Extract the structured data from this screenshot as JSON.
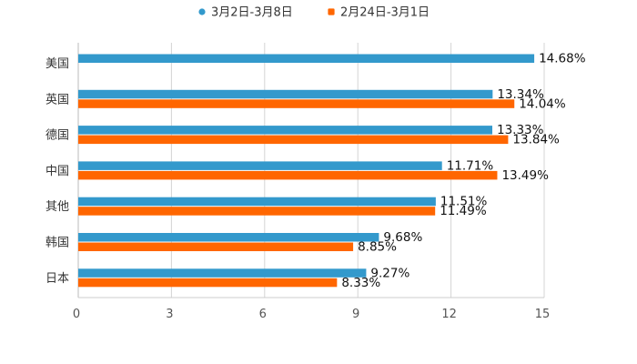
{
  "chart_data": {
    "type": "bar",
    "orientation": "horizontal",
    "categories": [
      "美国",
      "英国",
      "德国",
      "中国",
      "其他",
      "韩国",
      "日本"
    ],
    "series": [
      {
        "name": "3月2日-3月8日",
        "color": "#3399cc",
        "values": [
          14.68,
          13.34,
          13.33,
          11.71,
          11.51,
          9.68,
          9.27
        ],
        "labels": [
          "14.68%",
          "13.34%",
          "13.33%",
          "11.71%",
          "11.51%",
          "9.68%",
          "9.27%"
        ]
      },
      {
        "name": "2月24日-3月1日",
        "color": "#ff6600",
        "values": [
          null,
          14.04,
          13.84,
          13.49,
          11.49,
          8.85,
          8.33
        ],
        "labels": [
          null,
          "14.04%",
          "13.84%",
          "13.49%",
          "11.49%",
          "8.85%",
          "8.33%"
        ]
      }
    ],
    "xlim": [
      0,
      15
    ],
    "x_ticks": [
      0,
      3,
      6,
      9,
      12,
      15
    ],
    "x_tick_labels": [
      "0",
      "3",
      "6",
      "9",
      "12",
      "15"
    ],
    "grid": true,
    "legend_position": "top-center",
    "title": "",
    "xlabel": "",
    "ylabel": ""
  }
}
